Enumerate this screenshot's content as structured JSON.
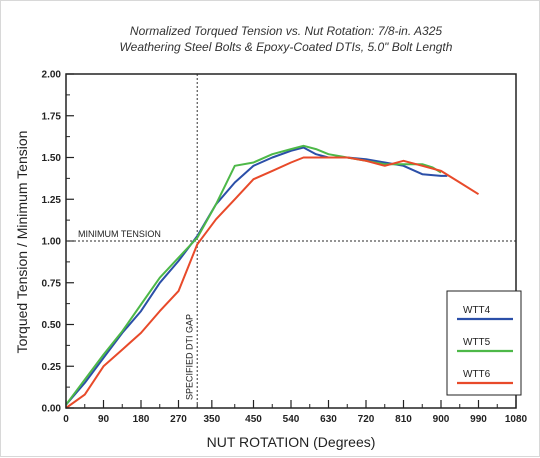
{
  "chart_data": {
    "type": "line",
    "title": "Normalized Torqued Tension vs. Nut Rotation: 7/8-in. A325",
    "subtitle": "Weathering Steel Bolts & Epoxy-Coated DTIs, 5.0\" Bolt Length",
    "xlabel": "NUT ROTATION (Degrees)",
    "ylabel": "Torqued Tension / Minimum Tension",
    "xlim": [
      0,
      1080
    ],
    "ylim": [
      0,
      2.0
    ],
    "x_ticks": [
      0,
      90,
      180,
      270,
      350,
      450,
      540,
      630,
      720,
      810,
      900,
      990,
      1080
    ],
    "y_ticks": [
      "0.00",
      "0.25",
      "0.50",
      "0.75",
      "1.00",
      "1.25",
      "1.50",
      "1.75",
      "2.00"
    ],
    "grid": false,
    "legend_position": "bottom-right",
    "annotations": {
      "minimum_tension": {
        "label": "MINIMUM TENSION",
        "y": 1.0
      },
      "specified_dti_gap": {
        "label": "SPECIFIED DTI GAP",
        "x": 315
      }
    },
    "series": [
      {
        "name": "WTT4",
        "color": "#2b4fa8",
        "points": [
          [
            0,
            0.02
          ],
          [
            45,
            0.15
          ],
          [
            90,
            0.3
          ],
          [
            135,
            0.45
          ],
          [
            180,
            0.58
          ],
          [
            225,
            0.75
          ],
          [
            270,
            0.88
          ],
          [
            315,
            1.03
          ],
          [
            360,
            1.22
          ],
          [
            405,
            1.35
          ],
          [
            450,
            1.45
          ],
          [
            495,
            1.5
          ],
          [
            540,
            1.54
          ],
          [
            570,
            1.56
          ],
          [
            600,
            1.52
          ],
          [
            630,
            1.5
          ],
          [
            675,
            1.5
          ],
          [
            720,
            1.49
          ],
          [
            765,
            1.47
          ],
          [
            810,
            1.45
          ],
          [
            855,
            1.4
          ],
          [
            900,
            1.39
          ],
          [
            915,
            1.39
          ]
        ]
      },
      {
        "name": "WTT5",
        "color": "#4db848",
        "points": [
          [
            0,
            0.02
          ],
          [
            45,
            0.17
          ],
          [
            90,
            0.32
          ],
          [
            135,
            0.46
          ],
          [
            180,
            0.62
          ],
          [
            225,
            0.78
          ],
          [
            270,
            0.9
          ],
          [
            315,
            1.02
          ],
          [
            360,
            1.22
          ],
          [
            405,
            1.45
          ],
          [
            450,
            1.47
          ],
          [
            495,
            1.52
          ],
          [
            540,
            1.55
          ],
          [
            570,
            1.57
          ],
          [
            600,
            1.55
          ],
          [
            630,
            1.52
          ],
          [
            675,
            1.5
          ],
          [
            720,
            1.48
          ],
          [
            765,
            1.46
          ],
          [
            810,
            1.46
          ],
          [
            855,
            1.46
          ],
          [
            880,
            1.44
          ],
          [
            900,
            1.41
          ]
        ]
      },
      {
        "name": "WTT6",
        "color": "#e84a2a",
        "points": [
          [
            0,
            0.0
          ],
          [
            45,
            0.08
          ],
          [
            90,
            0.25
          ],
          [
            135,
            0.35
          ],
          [
            180,
            0.45
          ],
          [
            225,
            0.58
          ],
          [
            270,
            0.7
          ],
          [
            315,
            0.98
          ],
          [
            360,
            1.13
          ],
          [
            405,
            1.25
          ],
          [
            450,
            1.37
          ],
          [
            495,
            1.42
          ],
          [
            540,
            1.47
          ],
          [
            570,
            1.5
          ],
          [
            630,
            1.5
          ],
          [
            675,
            1.5
          ],
          [
            720,
            1.48
          ],
          [
            765,
            1.45
          ],
          [
            810,
            1.48
          ],
          [
            855,
            1.45
          ],
          [
            900,
            1.42
          ],
          [
            945,
            1.35
          ],
          [
            990,
            1.28
          ]
        ]
      }
    ]
  }
}
